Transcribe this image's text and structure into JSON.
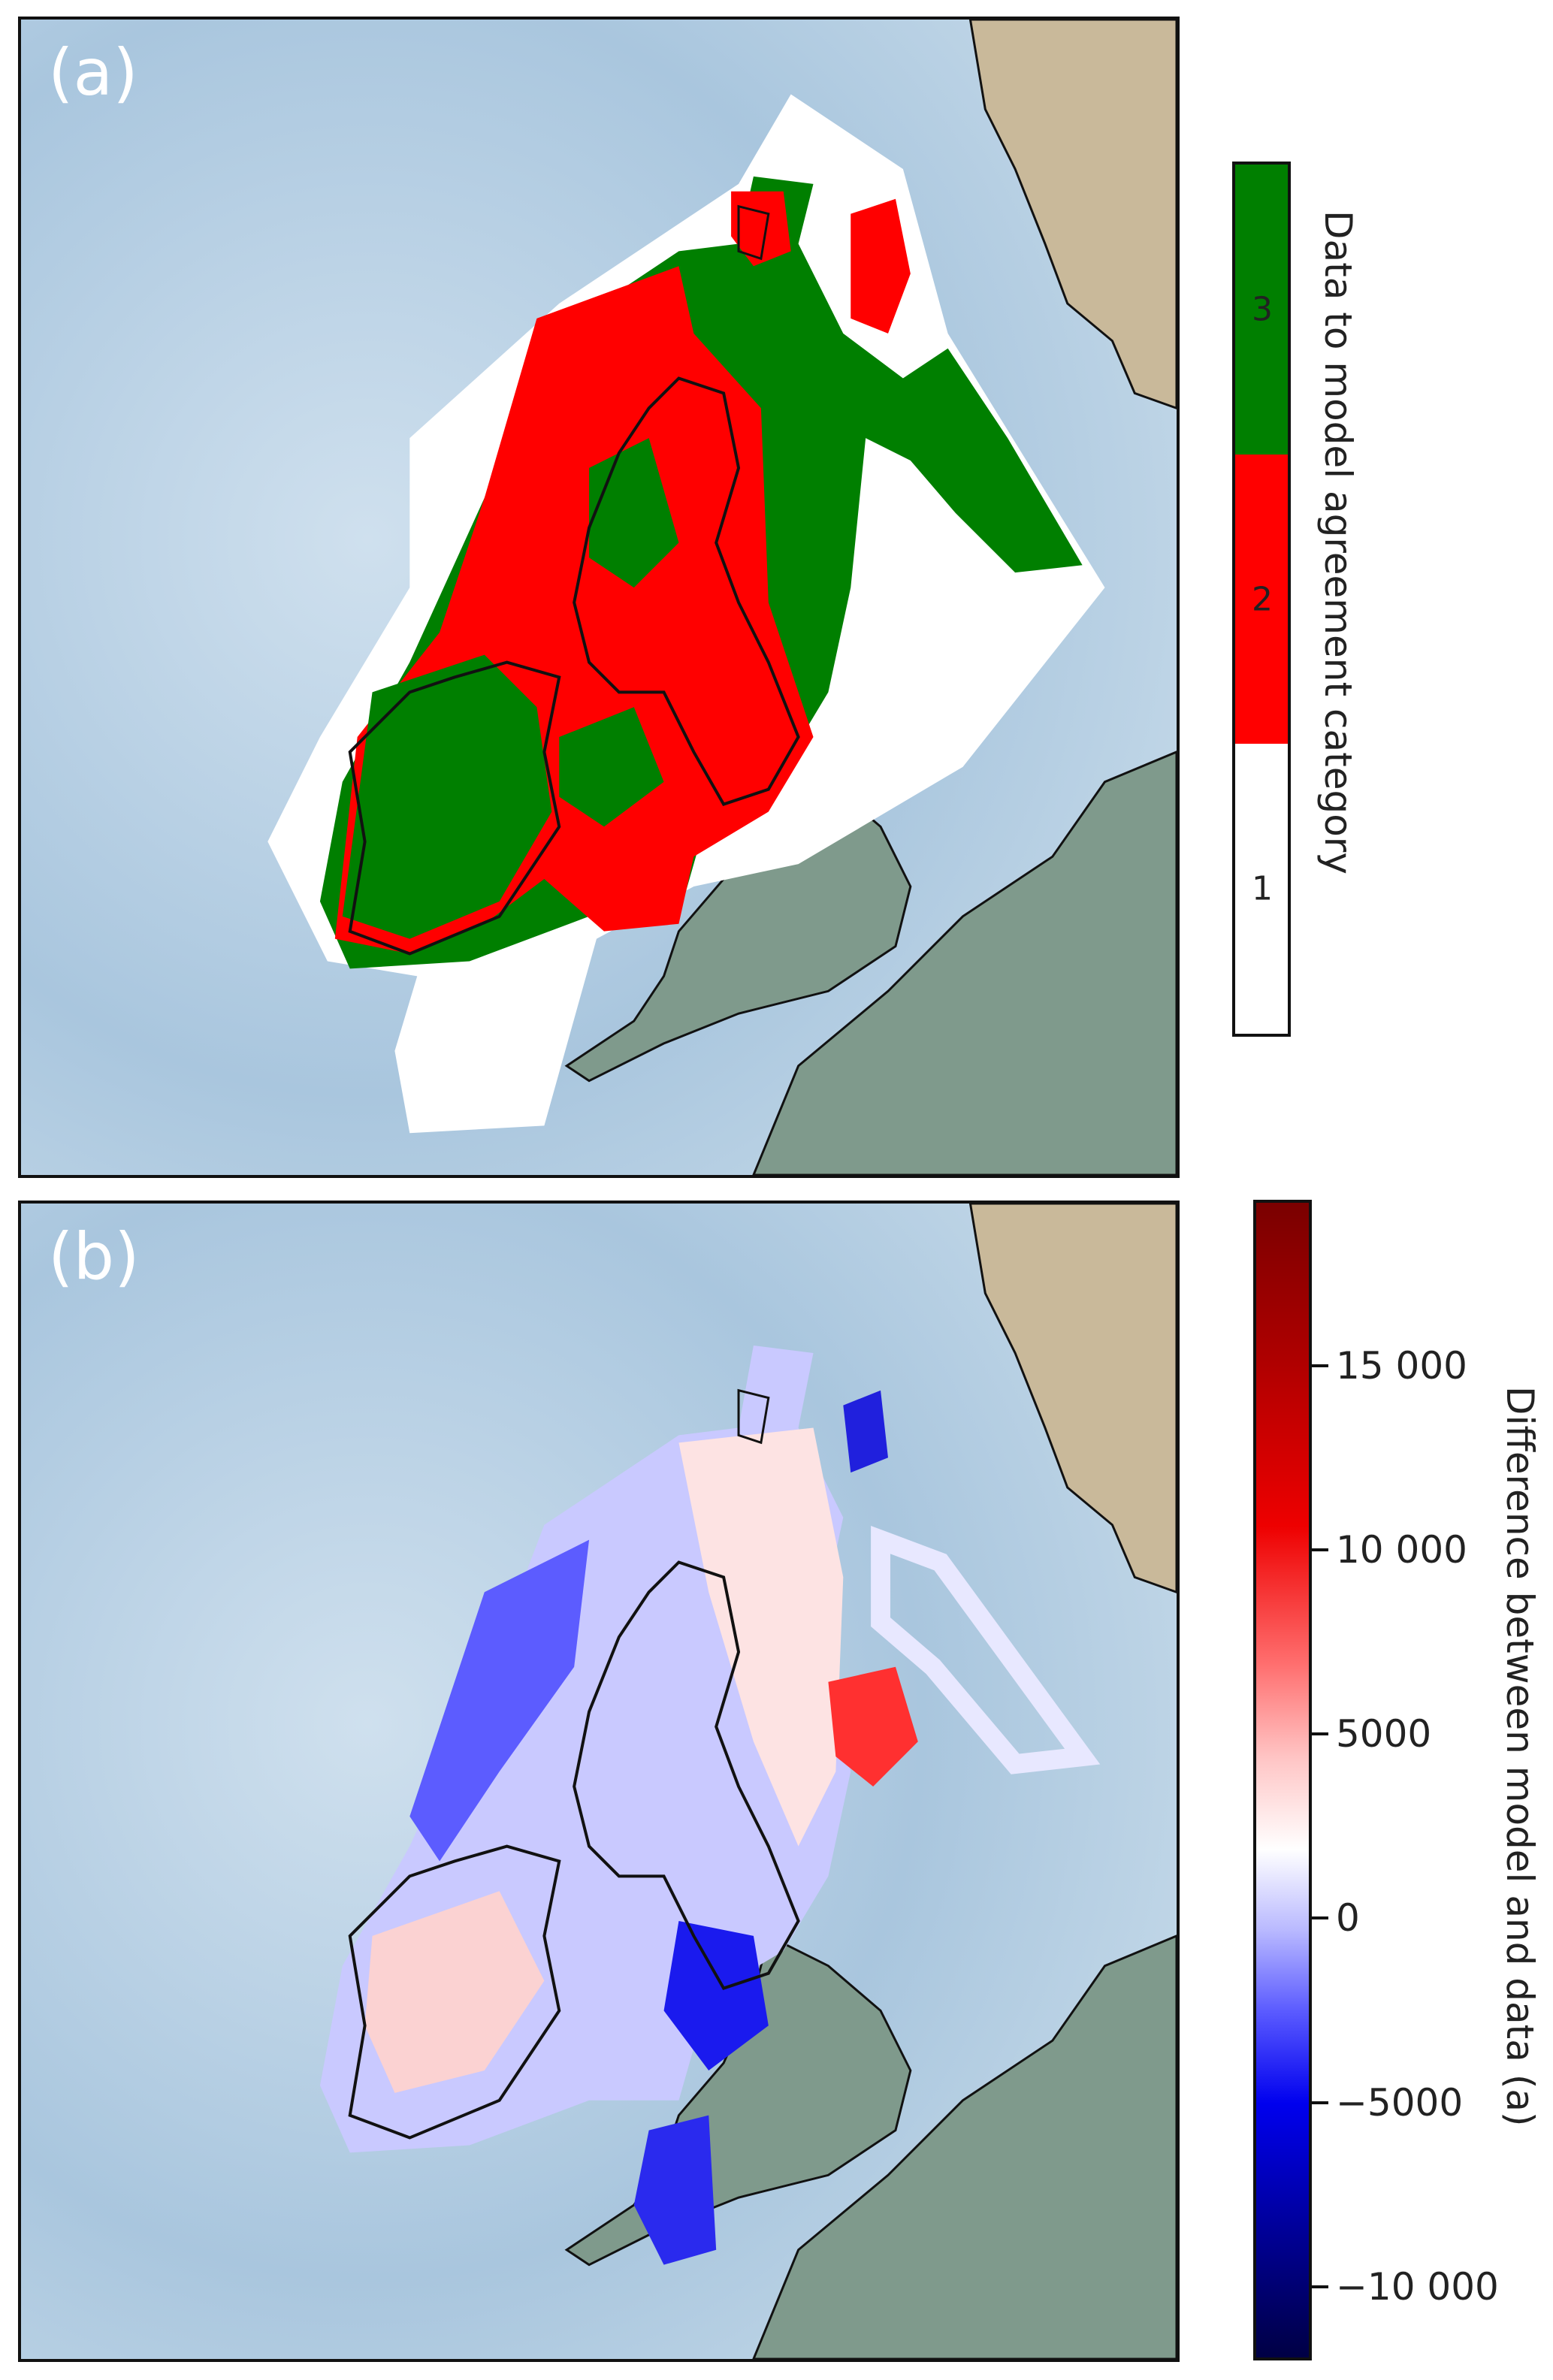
{
  "panel_a": {
    "label": "(a)",
    "colorbar": {
      "title": "Data to model agreement category",
      "categories": [
        {
          "label": "3",
          "color": "#007f00"
        },
        {
          "label": "2",
          "color": "#ff0000"
        },
        {
          "label": "1",
          "color": "#ffffff"
        }
      ]
    }
  },
  "panel_b": {
    "label": "(b)",
    "colorbar": {
      "title": "Difference between model and data (a)",
      "colormap": "seismic",
      "range": [
        -12000,
        19500
      ],
      "ticks": [
        "15 000",
        "10 000",
        "5000",
        "0",
        "−5000",
        "−10 000"
      ]
    }
  },
  "colors": {
    "ocean": "#b7cfe3",
    "land": "#7f9a8c",
    "highland": "#c9b99a",
    "coastline": "#111111",
    "domain_mask": "#ffffff"
  }
}
